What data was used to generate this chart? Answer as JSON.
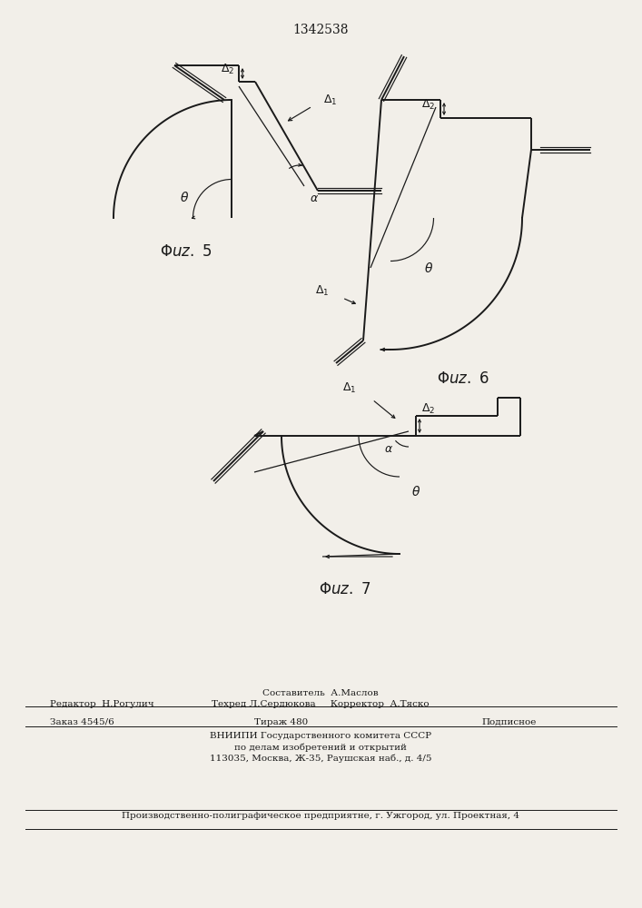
{
  "title": "1342538",
  "bg_color": "#f2efe9",
  "line_color": "#1a1a1a",
  "lw_main": 1.4,
  "lw_thin": 0.9,
  "lw_dim": 0.85,
  "footer": {
    "composer": "Составитель  А.Маслов",
    "editor": "Редактор  Н.Рогулич",
    "techred": "Техред Л.Сердюкова",
    "corrector": "Корректор  А.Тяско",
    "order": "Заказ 4545/6",
    "tirazh": "Тираж 480",
    "podpisnoe": "Подписное",
    "vniip1": "ВНИИПИ Государственного комитета СССР",
    "vniip2": "по делам изобретений и открытий",
    "vniip3": "113035, Москва, Ж-35, Раушская наб., д. 4/5",
    "proizv": "Производственно-полиграфическое предприятне, г. Ужгород, ул. Проектная, 4"
  }
}
